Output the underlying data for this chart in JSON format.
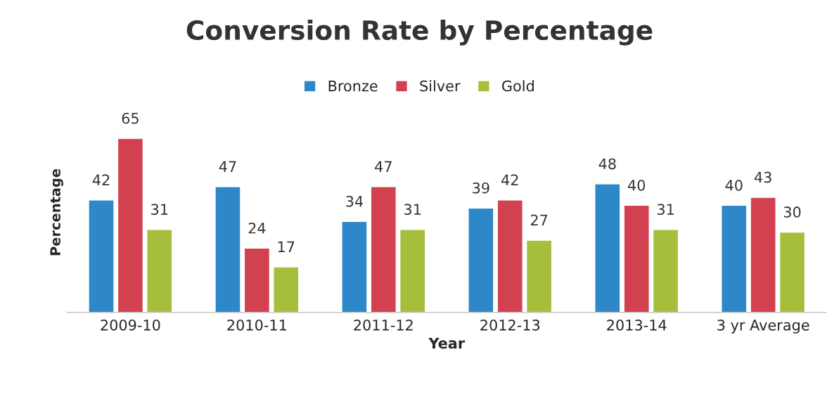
{
  "chart_data": {
    "type": "bar",
    "title": "Conversion Rate by Percentage",
    "xlabel": "Year",
    "ylabel": "Percentage",
    "categories": [
      "2009-10",
      "2010-11",
      "2011-12",
      "2012-13",
      "2013-14",
      "3 yr Average"
    ],
    "series": [
      {
        "name": "Bronze",
        "color": "#2e87c8",
        "values": [
          42,
          47,
          34,
          39,
          48,
          40
        ]
      },
      {
        "name": "Silver",
        "color": "#d1414f",
        "values": [
          65,
          24,
          47,
          42,
          40,
          43
        ]
      },
      {
        "name": "Gold",
        "color": "#a5bf3c",
        "values": [
          31,
          17,
          31,
          27,
          31,
          30
        ]
      }
    ],
    "data_labels": true,
    "legend": "top",
    "tick_labels": "x",
    "grid": false
  }
}
